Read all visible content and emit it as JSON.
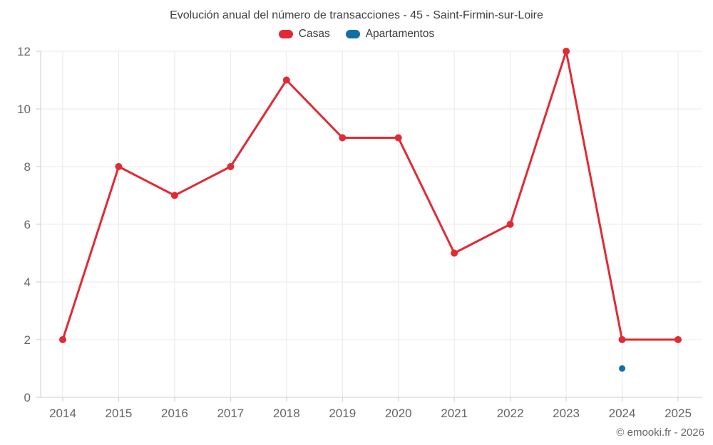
{
  "title": "Evolución anual del número de transacciones - 45 - Saint-Firmin-sur-Loire",
  "footer": "© emooki.fr - 2026",
  "chart_data": {
    "type": "line",
    "title": "Evolución anual del número de transacciones - 45 - Saint-Firmin-sur-Loire",
    "categories": [
      "2014",
      "2015",
      "2016",
      "2017",
      "2018",
      "2019",
      "2020",
      "2021",
      "2022",
      "2023",
      "2024",
      "2025"
    ],
    "series": [
      {
        "name": "Casas",
        "color": "#e02b35",
        "values": [
          2,
          8,
          7,
          8,
          11,
          9,
          9,
          5,
          6,
          12,
          2,
          2
        ],
        "marker_radius": 5,
        "line_width": 3
      },
      {
        "name": "Apartamentos",
        "color": "#0f6fa6",
        "values": [
          null,
          null,
          null,
          null,
          null,
          null,
          null,
          null,
          null,
          null,
          1,
          null
        ],
        "marker_radius": 4.5,
        "line_width": 3
      }
    ],
    "xlabel": "",
    "ylabel": "",
    "ylim": [
      0,
      12
    ],
    "yticks": [
      0,
      2,
      4,
      6,
      8,
      10,
      12
    ],
    "grid": true,
    "legend_position": "top",
    "colors": {
      "grid": "#e8e8e8",
      "axis": "#cccccc",
      "tick_label": "#666666",
      "title_text": "#404040",
      "legend_text": "#3c3c3c",
      "footer_text": "#666666"
    }
  }
}
